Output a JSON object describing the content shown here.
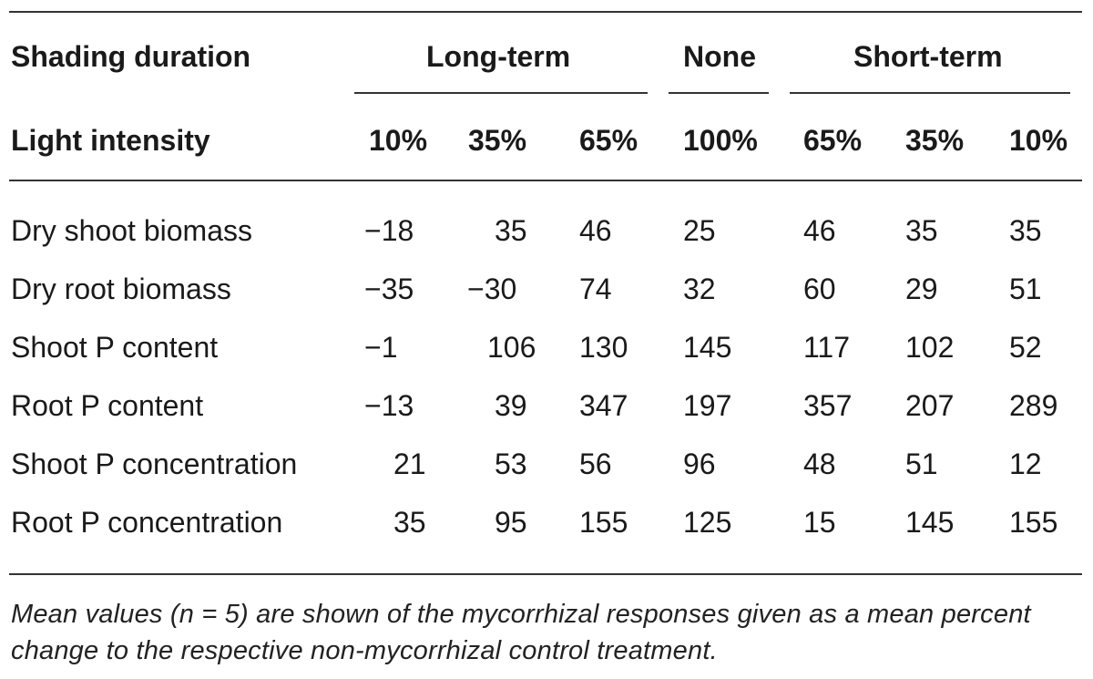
{
  "header": {
    "duration_label": "Shading duration",
    "groups": [
      "Long-term",
      "None",
      "Short-term"
    ],
    "intensity_label": "Light intensity",
    "intensities": [
      "10%",
      "35%",
      "65%",
      "100%",
      "65%",
      "35%",
      "10%"
    ]
  },
  "rows": [
    {
      "label": "Dry shoot biomass",
      "values": [
        "−18",
        "35",
        "46",
        "25",
        "46",
        "35",
        "35"
      ]
    },
    {
      "label": "Dry root biomass",
      "values": [
        "−35",
        "−30",
        "74",
        "32",
        "60",
        "29",
        "51"
      ]
    },
    {
      "label": "Shoot P content",
      "values": [
        "−1",
        "106",
        "130",
        "145",
        "117",
        "102",
        "52"
      ]
    },
    {
      "label": "Root P content",
      "values": [
        "−13",
        "39",
        "347",
        "197",
        "357",
        "207",
        "289"
      ]
    },
    {
      "label": "Shoot P concentration",
      "values": [
        "21",
        "53",
        "56",
        "96",
        "48",
        "51",
        "12"
      ]
    },
    {
      "label": "Root P concentration",
      "values": [
        "35",
        "95",
        "155",
        "125",
        "15",
        "145",
        "155"
      ]
    }
  ],
  "footnote": "Mean values (n = 5) are shown of the mycorrhizal responses given as a mean percent change to the respective non-mycorrhizal control treatment."
}
